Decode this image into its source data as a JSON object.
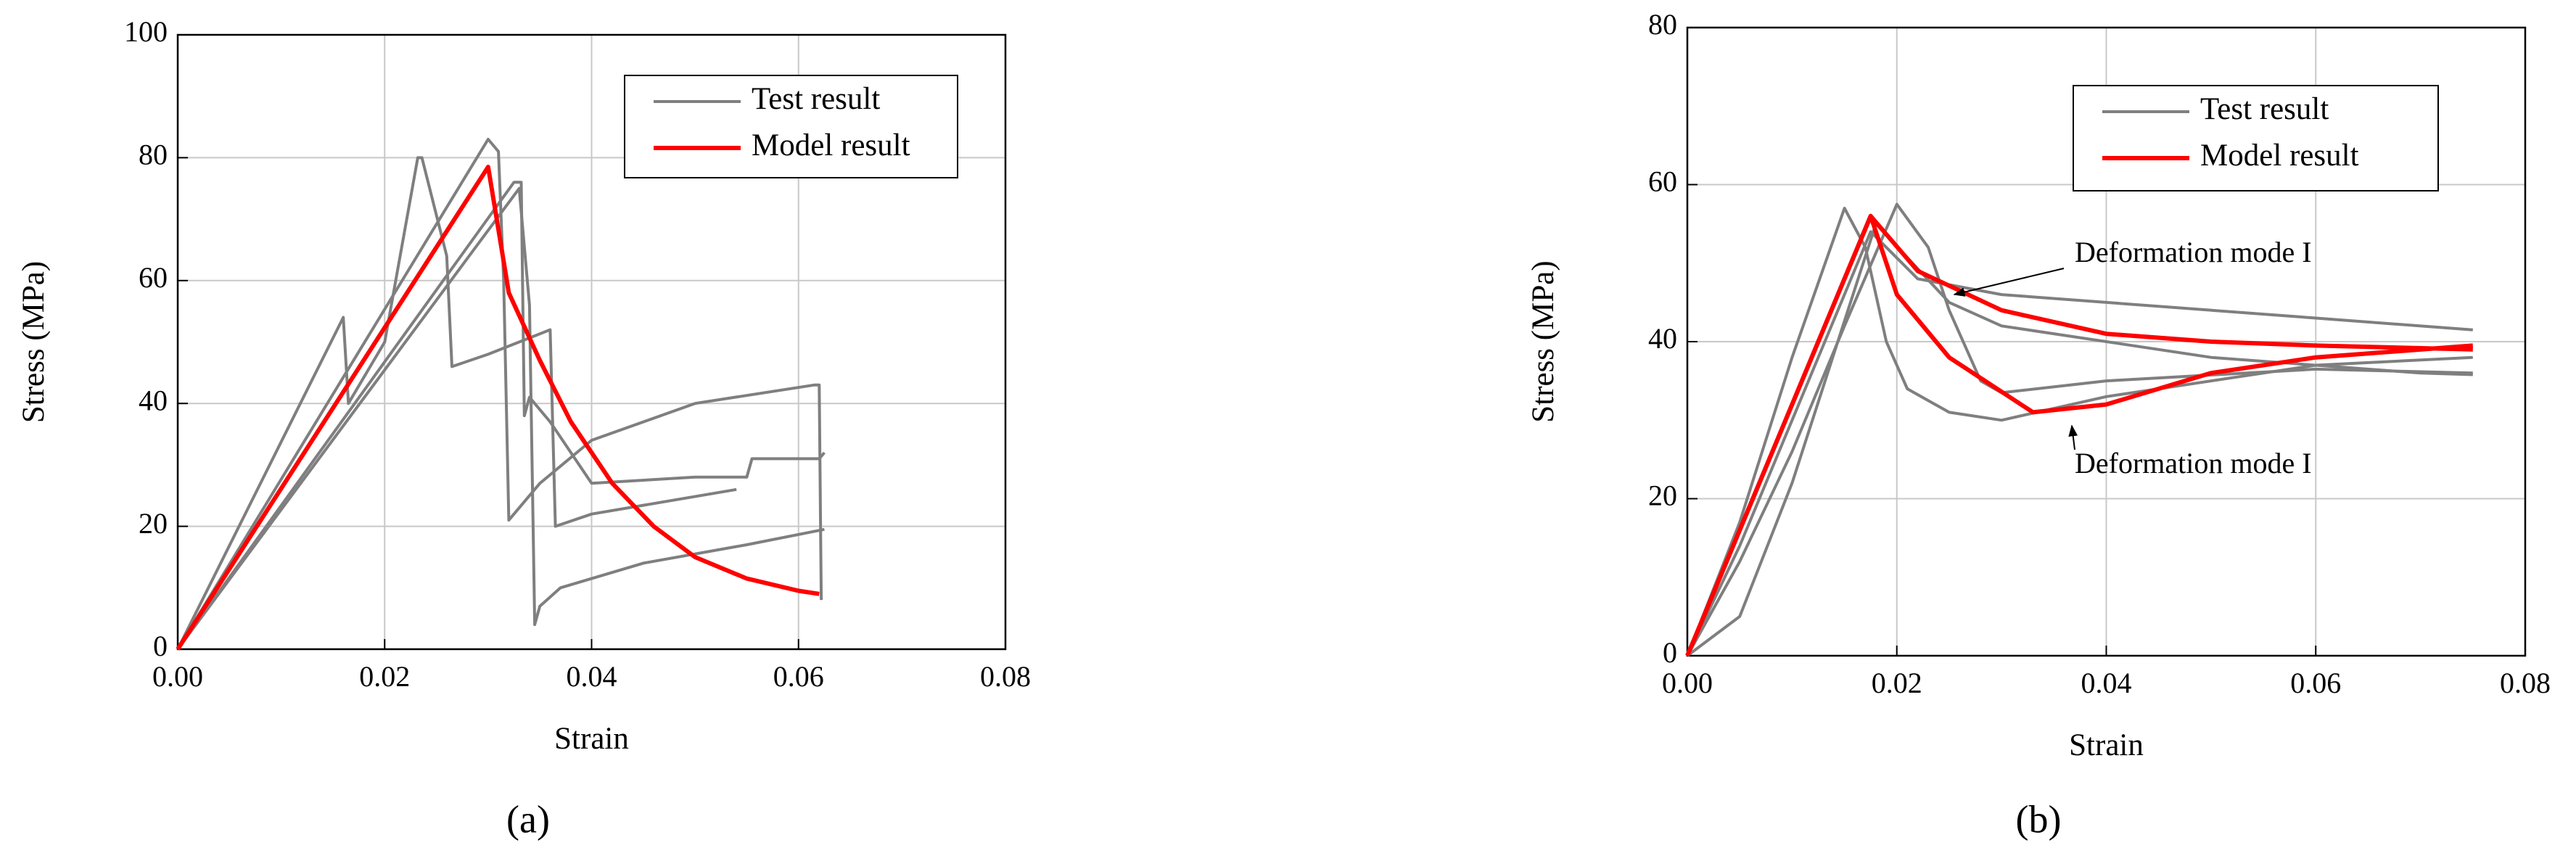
{
  "chart_data": [
    {
      "type": "line",
      "label": "(a)",
      "x_label": "Strain",
      "y_label": "Stress (MPa)",
      "xlim": [
        0,
        0.08
      ],
      "xticks": [
        {
          "value": 0,
          "label": "0.00"
        },
        0.02,
        0.04,
        0.06,
        0.08
      ],
      "ylim": [
        0,
        100
      ],
      "yticks": [
        0,
        20,
        40,
        60,
        80,
        100
      ],
      "grid": true,
      "legend": "upper right",
      "series": [
        {
          "name": "Test result",
          "color": "#7f7f7f",
          "curves": [
            {
              "x": [
                0,
                0.016,
                0.0165,
                0.02,
                0.0232,
                0.0236,
                0.026,
                0.0265,
                0.03,
                0.036,
                0.0365,
                0.04,
                0.054
              ],
              "y": [
                0,
                54,
                40,
                50,
                80,
                80,
                64,
                46,
                48,
                52,
                20,
                22,
                26
              ]
            },
            {
              "x": [
                0,
                0.03,
                0.031,
                0.0315,
                0.032,
                0.035,
                0.04,
                0.05,
                0.0615,
                0.062,
                0.0622
              ],
              "y": [
                0,
                83,
                81,
                60,
                21,
                27,
                34,
                40,
                43,
                43,
                8
              ]
            },
            {
              "x": [
                0,
                0.0325,
                0.0332,
                0.0335,
                0.034,
                0.036,
                0.04,
                0.05,
                0.055,
                0.0555,
                0.062,
                0.0625
              ],
              "y": [
                0,
                76,
                76,
                38,
                41,
                37,
                27,
                28,
                28,
                31,
                31,
                32
              ]
            },
            {
              "x": [
                0,
                0.033,
                0.034,
                0.0345,
                0.035,
                0.037,
                0.045,
                0.055,
                0.0625
              ],
              "y": [
                0,
                75,
                56,
                4,
                7,
                10,
                14,
                17,
                19.5
              ]
            }
          ]
        },
        {
          "name": "Model result",
          "color": "#ff0000",
          "curves": [
            {
              "x": [
                0,
                0.03,
                0.032,
                0.035,
                0.038,
                0.042,
                0.046,
                0.05,
                0.055,
                0.06,
                0.062
              ],
              "y": [
                0,
                78.5,
                58,
                47,
                37,
                27,
                20,
                15,
                11.5,
                9.5,
                9
              ]
            }
          ]
        }
      ]
    },
    {
      "type": "line",
      "label": "(b)",
      "x_label": "Strain",
      "y_label": "Stress (MPa)",
      "xlim": [
        0,
        0.08
      ],
      "xticks": [
        {
          "value": 0,
          "label": "0.00"
        },
        0.02,
        0.04,
        0.06,
        0.08
      ],
      "ylim": [
        0,
        80
      ],
      "yticks": [
        0,
        20,
        40,
        60,
        80
      ],
      "grid": true,
      "legend": "upper right",
      "annotations": [
        "Deformation mode I",
        "Deformation mode I"
      ],
      "series": [
        {
          "name": "Test result",
          "color": "#7f7f7f",
          "curves": [
            {
              "x": [
                0,
                0.005,
                0.01,
                0.015,
                0.017,
                0.019,
                0.021,
                0.025,
                0.03,
                0.04,
                0.06,
                0.075
              ],
              "y": [
                0,
                17,
                38,
                57,
                52,
                40,
                34,
                31,
                30,
                33,
                37,
                38
              ]
            },
            {
              "x": [
                0,
                0.005,
                0.01,
                0.0175,
                0.022,
                0.03,
                0.04,
                0.06,
                0.075
              ],
              "y": [
                0,
                14,
                30,
                54,
                48,
                46,
                45,
                43,
                41.5
              ]
            },
            {
              "x": [
                0,
                0.005,
                0.01,
                0.015,
                0.02,
                0.023,
                0.025,
                0.028,
                0.03,
                0.04,
                0.06,
                0.075
              ],
              "y": [
                0,
                12,
                26,
                42,
                57.5,
                52,
                44,
                35,
                33.5,
                35,
                36.5,
                36
              ]
            },
            {
              "x": [
                0,
                0.005,
                0.01,
                0.018,
                0.025,
                0.03,
                0.05,
                0.07,
                0.075
              ],
              "y": [
                0,
                5,
                22,
                55,
                45,
                42,
                38,
                36,
                35.8
              ]
            }
          ]
        },
        {
          "name": "Model result",
          "color": "#ff0000",
          "curves": [
            {
              "x": [
                0,
                0.0175,
                0.02,
                0.025,
                0.033,
                0.04,
                0.05,
                0.06,
                0.075
              ],
              "y": [
                0,
                56,
                46,
                38,
                31,
                32,
                36,
                38,
                39.5
              ]
            },
            {
              "x": [
                0,
                0.0175,
                0.022,
                0.03,
                0.04,
                0.05,
                0.06,
                0.075
              ],
              "y": [
                0,
                56,
                49,
                44,
                41,
                40,
                39.5,
                39
              ]
            }
          ]
        }
      ]
    }
  ]
}
